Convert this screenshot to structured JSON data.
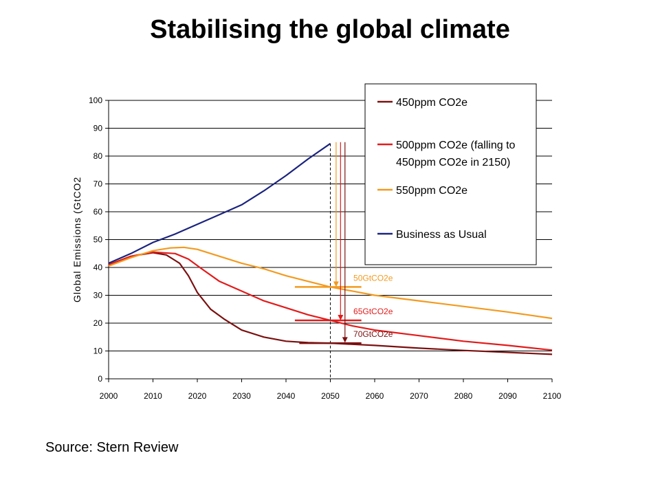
{
  "slide": {
    "title": "Stabilising the global climate",
    "source": "Source: Stern Review"
  },
  "colors": {
    "bau": "#1a237e",
    "s450": "#7b1010",
    "s500": "#e21b1b",
    "s550": "#f39a1e",
    "grid": "#000000"
  },
  "chart_data": {
    "type": "line",
    "title": "",
    "xlabel": "",
    "ylabel": "Global Emissions (GtCO2",
    "xlim": [
      2000,
      2100
    ],
    "ylim": [
      0,
      100
    ],
    "x_ticks": [
      "2000",
      "2010",
      "2020",
      "2030",
      "2040",
      "2050",
      "2060",
      "2070",
      "2080",
      "2090",
      "2100"
    ],
    "y_ticks": [
      "0",
      "10",
      "20",
      "30",
      "40",
      "50",
      "60",
      "70",
      "80",
      "90",
      "100"
    ],
    "grid": true,
    "legend_position": "top-right",
    "series": [
      {
        "key": "s450",
        "name": "450ppm CO2e",
        "points": [
          [
            2000,
            41
          ],
          [
            2005,
            44
          ],
          [
            2010,
            45.3
          ],
          [
            2013,
            44.5
          ],
          [
            2016,
            41.5
          ],
          [
            2018,
            37
          ],
          [
            2020,
            31
          ],
          [
            2023,
            25
          ],
          [
            2026,
            21.5
          ],
          [
            2030,
            17.5
          ],
          [
            2035,
            15
          ],
          [
            2040,
            13.5
          ],
          [
            2045,
            13
          ],
          [
            2050,
            12.8
          ],
          [
            2060,
            12
          ],
          [
            2070,
            11
          ],
          [
            2080,
            10.2
          ],
          [
            2090,
            9.5
          ],
          [
            2100,
            8.8
          ]
        ]
      },
      {
        "key": "s500",
        "name": "500ppm CO2e (falling to 450ppm CO2e in 2150)",
        "name_lines": [
          "500ppm CO2e (falling to",
          "450ppm CO2e in 2150)"
        ],
        "points": [
          [
            2000,
            41
          ],
          [
            2005,
            44
          ],
          [
            2010,
            45.5
          ],
          [
            2015,
            45
          ],
          [
            2018,
            43
          ],
          [
            2021,
            39.5
          ],
          [
            2025,
            35
          ],
          [
            2030,
            31.5
          ],
          [
            2035,
            28
          ],
          [
            2040,
            25.5
          ],
          [
            2045,
            23
          ],
          [
            2050,
            21
          ],
          [
            2055,
            19
          ],
          [
            2060,
            17.5
          ],
          [
            2070,
            15.5
          ],
          [
            2080,
            13.5
          ],
          [
            2090,
            12
          ],
          [
            2100,
            10.3
          ]
        ]
      },
      {
        "key": "s550",
        "name": "550ppm CO2e",
        "points": [
          [
            2000,
            40.5
          ],
          [
            2005,
            43.5
          ],
          [
            2010,
            46
          ],
          [
            2014,
            47
          ],
          [
            2017,
            47.2
          ],
          [
            2020,
            46.5
          ],
          [
            2025,
            44
          ],
          [
            2030,
            41.5
          ],
          [
            2035,
            39.5
          ],
          [
            2040,
            37
          ],
          [
            2045,
            35
          ],
          [
            2050,
            33
          ],
          [
            2055,
            31.5
          ],
          [
            2060,
            30
          ],
          [
            2070,
            28
          ],
          [
            2080,
            26
          ],
          [
            2090,
            24
          ],
          [
            2100,
            21.7
          ]
        ]
      },
      {
        "key": "bau",
        "name": "Business as Usual",
        "points": [
          [
            2000,
            41.5
          ],
          [
            2005,
            45
          ],
          [
            2010,
            49
          ],
          [
            2015,
            52
          ],
          [
            2020,
            55.5
          ],
          [
            2025,
            59
          ],
          [
            2030,
            62.5
          ],
          [
            2035,
            67.5
          ],
          [
            2040,
            73
          ],
          [
            2045,
            79
          ],
          [
            2050,
            84.5
          ]
        ]
      }
    ],
    "reference_line": {
      "x": 2050
    },
    "annotations": [
      {
        "key": "s550",
        "label": "50GtCO2e",
        "value": 33,
        "bar_from": 2042,
        "bar_to": 2057,
        "arrow_x": 2051.3,
        "arrow_from": 85,
        "arrow_to": 33
      },
      {
        "key": "s500",
        "label": "65GtCO2e",
        "value": 21,
        "bar_from": 2042,
        "bar_to": 2057,
        "arrow_x": 2052.3,
        "arrow_from": 85,
        "arrow_to": 21
      },
      {
        "key": "s450",
        "label": "70GtCO2e",
        "value": 12.8,
        "bar_from": 2043,
        "bar_to": 2057,
        "arrow_x": 2053.3,
        "arrow_from": 85,
        "arrow_to": 13
      }
    ]
  }
}
